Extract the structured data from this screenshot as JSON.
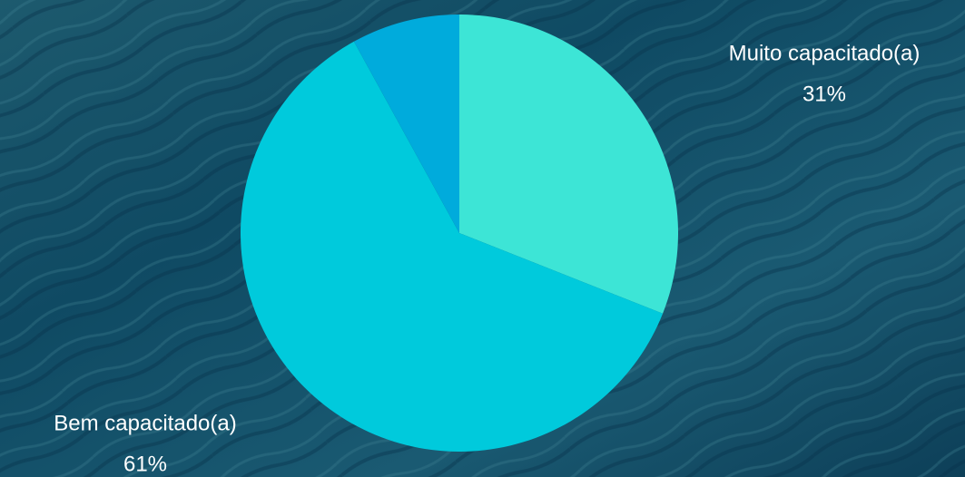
{
  "chart_data": {
    "type": "pie",
    "categories": [
      "Muito capacitado(a)",
      "Bem capacitado(a)",
      null
    ],
    "values": [
      31,
      61,
      8
    ],
    "value_labels": [
      "31%",
      "61%",
      null
    ],
    "colors": [
      "#3de5d6",
      "#00cadc",
      "#00abdc"
    ]
  }
}
